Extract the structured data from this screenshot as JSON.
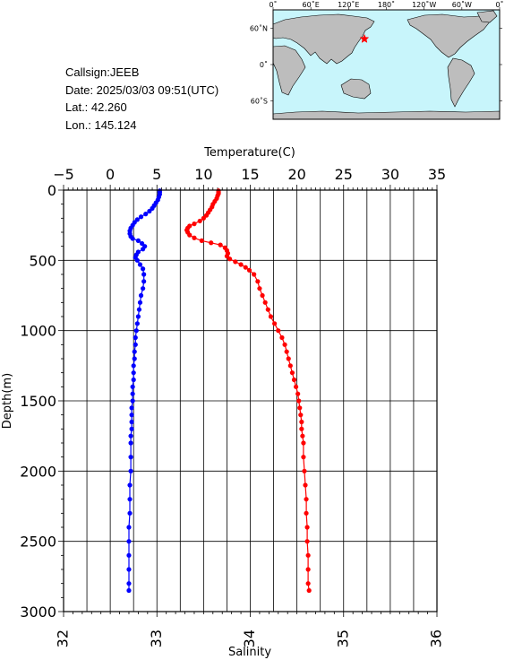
{
  "station": {
    "callsign": "Callsign:JEEB",
    "date": "Date:  2025/03/03 09:51(UTC)",
    "lat": "Lat.:   42.260",
    "lon": "Lon.:  145.124"
  },
  "map": {
    "lon_labels": [
      "0˚",
      "60˚E",
      "120˚E",
      "180˚",
      "120˚W",
      "60˚W",
      "0˚"
    ],
    "lat_labels": [
      "60˚N",
      "0˚",
      "60˚S"
    ],
    "ocean_color": "#c8f5fb",
    "land_color": "#bdbdbd",
    "marker_color": "#ff0000",
    "marker_icon": "star-icon",
    "station_position": {
      "lon": 145.124,
      "lat": 42.26
    }
  },
  "chart_data": {
    "type": "line",
    "ylabel": "Depth(m)",
    "ylim": [
      3000,
      0
    ],
    "yticks": [
      "0",
      "500",
      "1000",
      "1500",
      "2000",
      "2500",
      "3000"
    ],
    "grid": true,
    "top_axis": {
      "label": "Temperature(C)",
      "range": [
        -5,
        35
      ],
      "ticks": [
        "−5",
        "0",
        "5",
        "10",
        "15",
        "20",
        "25",
        "30",
        "35"
      ]
    },
    "bottom_axis": {
      "label": "Salinity",
      "range": [
        32,
        36
      ],
      "ticks": [
        "32",
        "33",
        "34",
        "35",
        "36"
      ]
    },
    "series": [
      {
        "axis": "top",
        "color": "#ff0000",
        "points": [
          [
            11.6,
            5
          ],
          [
            11.6,
            15
          ],
          [
            11.6,
            25
          ],
          [
            11.5,
            40
          ],
          [
            11.4,
            60
          ],
          [
            11.2,
            80
          ],
          [
            11.0,
            100
          ],
          [
            10.9,
            120
          ],
          [
            10.7,
            140
          ],
          [
            10.5,
            160
          ],
          [
            10.3,
            180
          ],
          [
            10.0,
            200
          ],
          [
            9.6,
            220
          ],
          [
            9.0,
            240
          ],
          [
            8.5,
            255
          ],
          [
            8.3,
            270
          ],
          [
            8.2,
            285
          ],
          [
            8.3,
            300
          ],
          [
            8.5,
            320
          ],
          [
            9.0,
            340
          ],
          [
            9.8,
            360
          ],
          [
            10.8,
            375
          ],
          [
            11.8,
            390
          ],
          [
            12.3,
            410
          ],
          [
            12.5,
            430
          ],
          [
            12.6,
            450
          ],
          [
            12.5,
            470
          ],
          [
            12.8,
            490
          ],
          [
            13.4,
            510
          ],
          [
            14.0,
            530
          ],
          [
            14.5,
            550
          ],
          [
            14.9,
            570
          ],
          [
            15.4,
            600
          ],
          [
            15.8,
            650
          ],
          [
            16.0,
            700
          ],
          [
            16.3,
            750
          ],
          [
            16.6,
            800
          ],
          [
            16.9,
            850
          ],
          [
            17.2,
            900
          ],
          [
            17.6,
            950
          ],
          [
            18.0,
            1000
          ],
          [
            18.4,
            1050
          ],
          [
            18.7,
            1100
          ],
          [
            18.9,
            1150
          ],
          [
            19.1,
            1200
          ],
          [
            19.3,
            1250
          ],
          [
            19.5,
            1300
          ],
          [
            19.7,
            1350
          ],
          [
            19.9,
            1400
          ],
          [
            20.1,
            1450
          ],
          [
            20.2,
            1500
          ],
          [
            20.3,
            1550
          ],
          [
            20.4,
            1600
          ],
          [
            20.5,
            1650
          ],
          [
            20.5,
            1700
          ],
          [
            20.6,
            1750
          ],
          [
            20.7,
            1800
          ],
          [
            20.7,
            1900
          ],
          [
            20.8,
            2000
          ],
          [
            20.9,
            2100
          ],
          [
            21.0,
            2200
          ],
          [
            21.0,
            2300
          ],
          [
            21.1,
            2400
          ],
          [
            21.1,
            2500
          ],
          [
            21.2,
            2600
          ],
          [
            21.2,
            2700
          ],
          [
            21.2,
            2800
          ],
          [
            21.3,
            2850
          ]
        ]
      },
      {
        "axis": "bottom",
        "color": "#0000ff",
        "points": [
          [
            33.03,
            5
          ],
          [
            33.03,
            15
          ],
          [
            33.03,
            30
          ],
          [
            33.02,
            50
          ],
          [
            33.01,
            70
          ],
          [
            32.99,
            90
          ],
          [
            32.97,
            110
          ],
          [
            32.95,
            130
          ],
          [
            32.92,
            150
          ],
          [
            32.88,
            170
          ],
          [
            32.83,
            190
          ],
          [
            32.79,
            210
          ],
          [
            32.76,
            230
          ],
          [
            32.74,
            250
          ],
          [
            32.72,
            270
          ],
          [
            32.71,
            290
          ],
          [
            32.71,
            310
          ],
          [
            32.72,
            330
          ],
          [
            32.74,
            345
          ],
          [
            32.8,
            360
          ],
          [
            32.84,
            380
          ],
          [
            32.87,
            400
          ],
          [
            32.85,
            420
          ],
          [
            32.8,
            440
          ],
          [
            32.78,
            460
          ],
          [
            32.77,
            480
          ],
          [
            32.79,
            500
          ],
          [
            32.82,
            530
          ],
          [
            32.85,
            560
          ],
          [
            32.86,
            600
          ],
          [
            32.86,
            650
          ],
          [
            32.85,
            700
          ],
          [
            32.83,
            750
          ],
          [
            32.82,
            800
          ],
          [
            32.81,
            850
          ],
          [
            32.8,
            900
          ],
          [
            32.79,
            950
          ],
          [
            32.78,
            1000
          ],
          [
            32.77,
            1050
          ],
          [
            32.77,
            1100
          ],
          [
            32.76,
            1150
          ],
          [
            32.76,
            1200
          ],
          [
            32.75,
            1250
          ],
          [
            32.75,
            1300
          ],
          [
            32.75,
            1350
          ],
          [
            32.74,
            1400
          ],
          [
            32.74,
            1450
          ],
          [
            32.74,
            1500
          ],
          [
            32.73,
            1550
          ],
          [
            32.73,
            1600
          ],
          [
            32.73,
            1650
          ],
          [
            32.73,
            1700
          ],
          [
            32.72,
            1750
          ],
          [
            32.72,
            1800
          ],
          [
            32.72,
            1900
          ],
          [
            32.72,
            2000
          ],
          [
            32.71,
            2100
          ],
          [
            32.71,
            2200
          ],
          [
            32.71,
            2300
          ],
          [
            32.7,
            2400
          ],
          [
            32.7,
            2500
          ],
          [
            32.7,
            2600
          ],
          [
            32.7,
            2700
          ],
          [
            32.7,
            2800
          ],
          [
            32.7,
            2850
          ]
        ]
      }
    ]
  }
}
